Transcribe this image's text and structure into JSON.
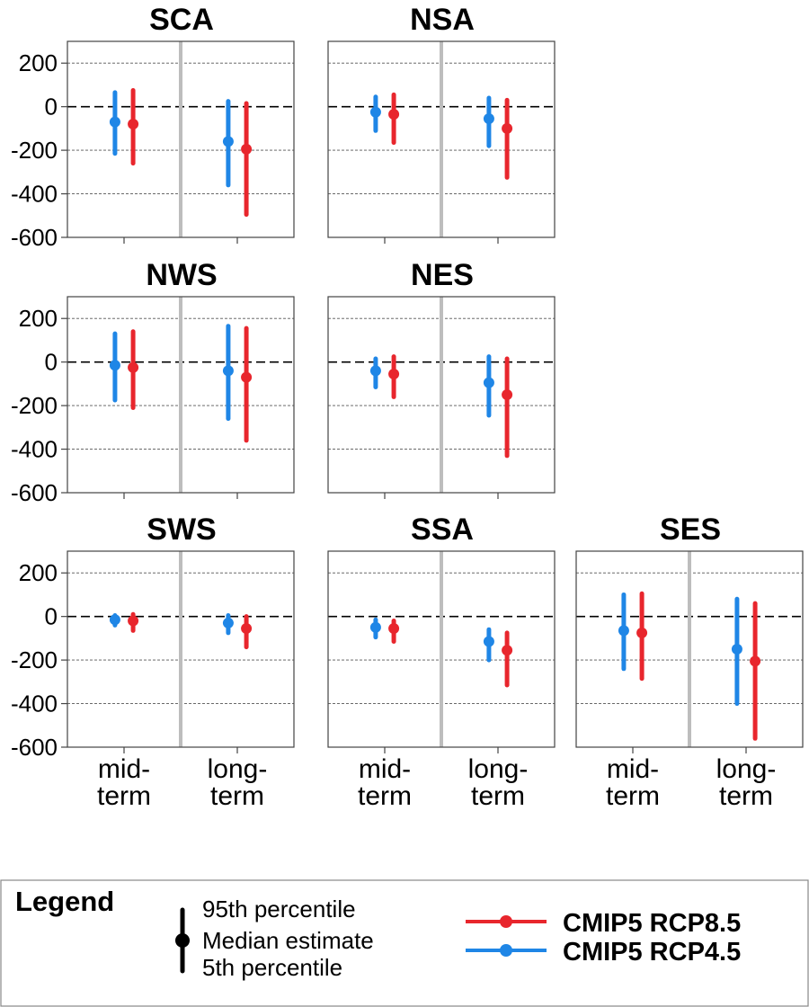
{
  "colors": {
    "rcp85": "#e8262d",
    "rcp45": "#1f86e6",
    "separator": "#bdbdbd"
  },
  "chart_data": {
    "type": "scatter",
    "ylim": [
      -600,
      300
    ],
    "yticks": [
      "200",
      "0",
      "-200",
      "-400",
      "-600"
    ],
    "ytick_values": [
      200,
      0,
      -200,
      -400,
      -600
    ],
    "categories": [
      [
        "mid-",
        "term"
      ],
      [
        "long-",
        "term"
      ]
    ],
    "grid": true,
    "legend": {
      "title": "Legend",
      "labels": [
        "95th percentile",
        "Median estimate",
        "5th percentile"
      ],
      "series": [
        "CMIP5 RCP8.5",
        "CMIP5 RCP4.5"
      ]
    },
    "panels": [
      {
        "title": "SCA",
        "rcp45": {
          "median": [
            -70,
            -160
          ],
          "p5": [
            -215,
            -360
          ],
          "p95": [
            65,
            25
          ]
        },
        "rcp85": {
          "median": [
            -80,
            -195
          ],
          "p5": [
            -260,
            -495
          ],
          "p95": [
            75,
            15
          ]
        }
      },
      {
        "title": "NSA",
        "rcp45": {
          "median": [
            -25,
            -55
          ],
          "p5": [
            -110,
            -180
          ],
          "p95": [
            45,
            40
          ]
        },
        "rcp85": {
          "median": [
            -35,
            -100
          ],
          "p5": [
            -165,
            -325
          ],
          "p95": [
            55,
            30
          ]
        }
      },
      {
        "title": "NWS",
        "rcp45": {
          "median": [
            -15,
            -40
          ],
          "p5": [
            -175,
            -260
          ],
          "p95": [
            130,
            165
          ]
        },
        "rcp85": {
          "median": [
            -25,
            -70
          ],
          "p5": [
            -210,
            -360
          ],
          "p95": [
            140,
            155
          ]
        }
      },
      {
        "title": "NES",
        "rcp45": {
          "median": [
            -40,
            -95
          ],
          "p5": [
            -115,
            -245
          ],
          "p95": [
            15,
            25
          ]
        },
        "rcp85": {
          "median": [
            -55,
            -150
          ],
          "p5": [
            -160,
            -430
          ],
          "p95": [
            25,
            15
          ]
        }
      },
      {
        "title": "SWS",
        "rcp45": {
          "median": [
            -15,
            -30
          ],
          "p5": [
            -40,
            -75
          ],
          "p95": [
            5,
            5
          ]
        },
        "rcp85": {
          "median": [
            -20,
            -55
          ],
          "p5": [
            -65,
            -140
          ],
          "p95": [
            10,
            0
          ]
        }
      },
      {
        "title": "SSA",
        "rcp45": {
          "median": [
            -50,
            -115
          ],
          "p5": [
            -95,
            -200
          ],
          "p95": [
            -15,
            -60
          ]
        },
        "rcp85": {
          "median": [
            -55,
            -155
          ],
          "p5": [
            -115,
            -315
          ],
          "p95": [
            -20,
            -75
          ]
        }
      },
      {
        "title": "SES",
        "rcp45": {
          "median": [
            -65,
            -150
          ],
          "p5": [
            -240,
            -400
          ],
          "p95": [
            100,
            80
          ]
        },
        "rcp85": {
          "median": [
            -75,
            -205
          ],
          "p5": [
            -285,
            -560
          ],
          "p95": [
            105,
            60
          ]
        }
      }
    ]
  }
}
